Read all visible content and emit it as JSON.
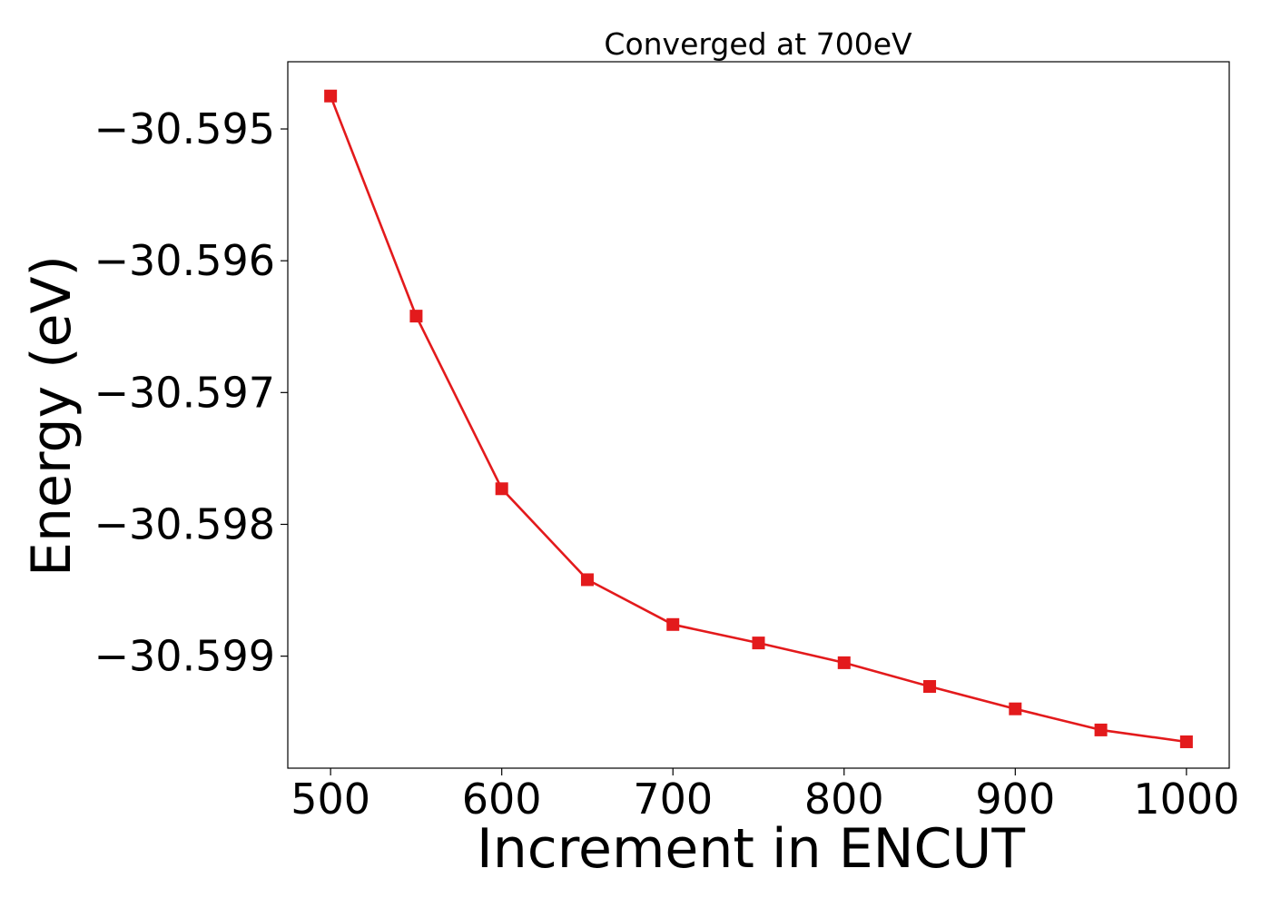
{
  "chart_data": {
    "type": "line",
    "title": "Converged at 700eV",
    "xlabel": "Increment in ENCUT",
    "ylabel": "Energy (eV)",
    "xlim": [
      475,
      1025
    ],
    "ylim": [
      -30.59985,
      -30.59449
    ],
    "grid": false,
    "x_ticks": [
      500,
      600,
      700,
      800,
      900,
      1000
    ],
    "x_tick_labels": [
      "500",
      "600",
      "700",
      "800",
      "900",
      "1000"
    ],
    "y_ticks": [
      -30.595,
      -30.596,
      -30.597,
      -30.598,
      -30.599
    ],
    "y_tick_labels": [
      "−30.595",
      "−30.596",
      "−30.597",
      "−30.598",
      "−30.599"
    ],
    "series": [
      {
        "color": "#e31a1c",
        "marker": "square",
        "x": [
          500,
          550,
          600,
          650,
          700,
          750,
          800,
          850,
          900,
          950,
          1000
        ],
        "y": [
          -30.59475,
          -30.59642,
          -30.59773,
          -30.59842,
          -30.59876,
          -30.5989,
          -30.59905,
          -30.59923,
          -30.5994,
          -30.59956,
          -30.59965
        ]
      }
    ]
  }
}
